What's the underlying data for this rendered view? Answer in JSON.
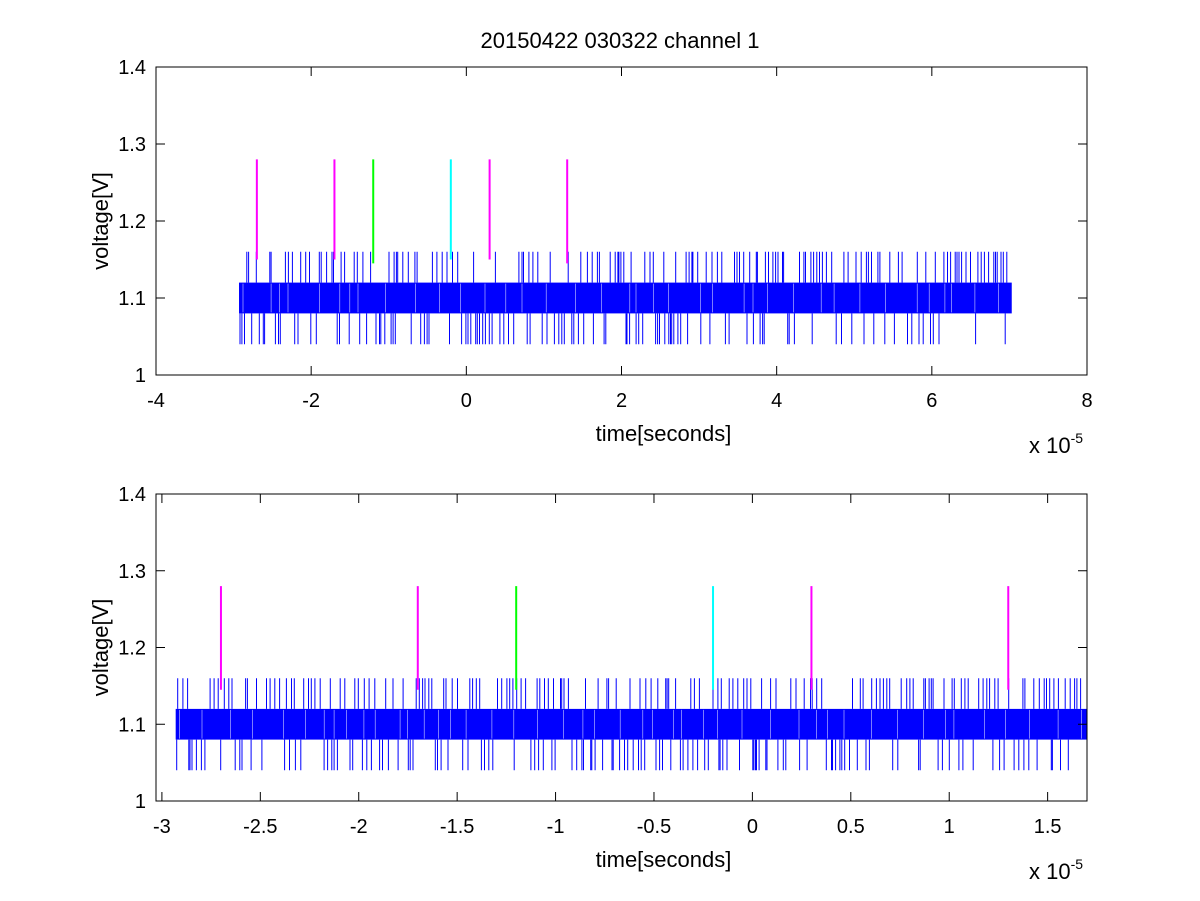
{
  "chart_data": [
    {
      "type": "line",
      "title": "20150422 030322 channel 1",
      "xlabel": "time[seconds]",
      "ylabel": "voltage[V]",
      "x_exponent_label": "x 10",
      "x_exponent": "-5",
      "xlim": [
        -4,
        8
      ],
      "ylim": [
        1,
        1.4
      ],
      "xticks": [
        -4,
        -2,
        0,
        2,
        4,
        6,
        8
      ],
      "xtick_labels": [
        "-4",
        "-2",
        "0",
        "2",
        "4",
        "6",
        "8"
      ],
      "yticks": [
        1,
        1.1,
        1.2,
        1.3,
        1.4
      ],
      "ytick_labels": [
        "1",
        "1.1",
        "1.2",
        "1.3",
        "1.4"
      ],
      "grid": false,
      "signal": {
        "color": "#0000ff",
        "x_start": -2.93,
        "x_end": 7.03,
        "band_low": 1.08,
        "band_high": 1.12,
        "spike_high": 1.16,
        "spike_low": 1.04
      },
      "markers": [
        {
          "x": -2.7,
          "y_low": 1.15,
          "y_high": 1.28,
          "color": "#ff00ff"
        },
        {
          "x": -1.7,
          "y_low": 1.15,
          "y_high": 1.28,
          "color": "#ff00ff"
        },
        {
          "x": -1.2,
          "y_low": 1.145,
          "y_high": 1.28,
          "color": "#00ff00"
        },
        {
          "x": -0.2,
          "y_low": 1.15,
          "y_high": 1.28,
          "color": "#00ffff"
        },
        {
          "x": 0.3,
          "y_low": 1.15,
          "y_high": 1.28,
          "color": "#ff00ff"
        },
        {
          "x": 1.3,
          "y_low": 1.145,
          "y_high": 1.28,
          "color": "#ff00ff"
        }
      ]
    },
    {
      "type": "line",
      "title": "",
      "xlabel": "time[seconds]",
      "ylabel": "voltage[V]",
      "x_exponent_label": "x 10",
      "x_exponent": "-5",
      "xlim": [
        -3.03,
        1.7
      ],
      "ylim": [
        1,
        1.4
      ],
      "xticks": [
        -3,
        -2.5,
        -2,
        -1.5,
        -1,
        -0.5,
        0,
        0.5,
        1,
        1.5
      ],
      "xtick_labels": [
        "-3",
        "-2.5",
        "-2",
        "-1.5",
        "-1",
        "-0.5",
        "0",
        "0.5",
        "1",
        "1.5"
      ],
      "yticks": [
        1,
        1.1,
        1.2,
        1.3,
        1.4
      ],
      "ytick_labels": [
        "1",
        "1.1",
        "1.2",
        "1.3",
        "1.4"
      ],
      "grid": false,
      "signal": {
        "color": "#0000ff",
        "x_start": -2.93,
        "x_end": 1.7,
        "band_low": 1.08,
        "band_high": 1.12,
        "spike_high": 1.16,
        "spike_low": 1.04
      },
      "markers": [
        {
          "x": -2.7,
          "y_low": 1.145,
          "y_high": 1.28,
          "color": "#ff00ff"
        },
        {
          "x": -1.7,
          "y_low": 1.145,
          "y_high": 1.28,
          "color": "#ff00ff"
        },
        {
          "x": -1.2,
          "y_low": 1.145,
          "y_high": 1.28,
          "color": "#00ff00"
        },
        {
          "x": -0.2,
          "y_low": 1.145,
          "y_high": 1.28,
          "color": "#00ffff"
        },
        {
          "x": 0.3,
          "y_low": 1.145,
          "y_high": 1.28,
          "color": "#ff00ff"
        },
        {
          "x": 1.3,
          "y_low": 1.145,
          "y_high": 1.28,
          "color": "#ff00ff"
        }
      ]
    }
  ]
}
